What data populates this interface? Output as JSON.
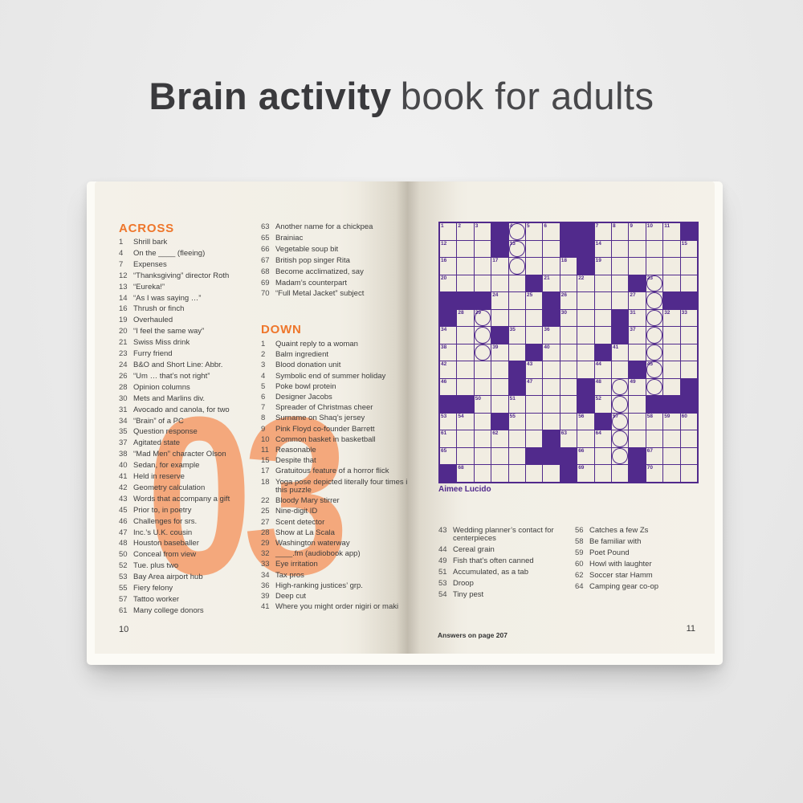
{
  "title": {
    "bold": "Brain activity",
    "regular": "book for adults"
  },
  "colors": {
    "accent_orange": "#ee762b",
    "watermark_peach": "#f4a87c",
    "grid_purple": "#512a8c",
    "page_cream": "#f2efe6",
    "background_gray": "#eaeaea",
    "title_gray": "#3a3a3d"
  },
  "left_page": {
    "across_header": "ACROSS",
    "down_header": "DOWN",
    "watermark": "03",
    "page_number": "10",
    "across_clues_col1": [
      {
        "n": "1",
        "t": "Shrill bark"
      },
      {
        "n": "4",
        "t": "On the ____ (fleeing)"
      },
      {
        "n": "7",
        "t": "Expenses"
      },
      {
        "n": "12",
        "t": "“Thanksgiving” director Roth"
      },
      {
        "n": "13",
        "t": "“Eureka!”"
      },
      {
        "n": "14",
        "t": "“As I was saying …”"
      },
      {
        "n": "16",
        "t": "Thrush or finch"
      },
      {
        "n": "19",
        "t": "Overhauled"
      },
      {
        "n": "20",
        "t": "“I feel the same way”"
      },
      {
        "n": "21",
        "t": "Swiss Miss drink"
      },
      {
        "n": "23",
        "t": "Furry friend"
      },
      {
        "n": "24",
        "t": "B&O and Short Line: Abbr."
      },
      {
        "n": "26",
        "t": "“Um … that’s not right”"
      },
      {
        "n": "28",
        "t": "Opinion columns"
      },
      {
        "n": "30",
        "t": "Mets and Marlins div."
      },
      {
        "n": "31",
        "t": "Avocado and canola, for two"
      },
      {
        "n": "34",
        "t": "“Brain” of a PC"
      },
      {
        "n": "35",
        "t": "Question response"
      },
      {
        "n": "37",
        "t": "Agitated state"
      },
      {
        "n": "38",
        "t": "“Mad Men” character Olson"
      },
      {
        "n": "40",
        "t": "Sedan, for example"
      },
      {
        "n": "41",
        "t": "Held in reserve"
      },
      {
        "n": "42",
        "t": "Geometry calculation"
      },
      {
        "n": "43",
        "t": "Words that accompany a gift"
      },
      {
        "n": "45",
        "t": "Prior to, in poetry"
      },
      {
        "n": "46",
        "t": "Challenges for srs."
      },
      {
        "n": "47",
        "t": "Inc.’s U.K. cousin"
      },
      {
        "n": "48",
        "t": "Houston baseballer"
      },
      {
        "n": "50",
        "t": "Conceal from view"
      },
      {
        "n": "52",
        "t": "Tue. plus two"
      },
      {
        "n": "53",
        "t": "Bay Area airport hub"
      },
      {
        "n": "55",
        "t": "Fiery felony"
      },
      {
        "n": "57",
        "t": "Tattoo worker"
      },
      {
        "n": "61",
        "t": "Many college donors"
      }
    ],
    "across_clues_col2": [
      {
        "n": "63",
        "t": "Another name for a chickpea"
      },
      {
        "n": "65",
        "t": "Brainiac"
      },
      {
        "n": "66",
        "t": "Vegetable soup bit"
      },
      {
        "n": "67",
        "t": "British pop singer Rita"
      },
      {
        "n": "68",
        "t": "Become acclimatized, say"
      },
      {
        "n": "69",
        "t": "Madam’s counterpart"
      },
      {
        "n": "70",
        "t": "“Full Metal Jacket” subject"
      }
    ],
    "down_clues": [
      {
        "n": "1",
        "t": "Quaint reply to a woman"
      },
      {
        "n": "2",
        "t": "Balm ingredient"
      },
      {
        "n": "3",
        "t": "Blood donation unit"
      },
      {
        "n": "4",
        "t": "Symbolic end of summer holiday"
      },
      {
        "n": "5",
        "t": "Poke bowl protein"
      },
      {
        "n": "6",
        "t": "Designer Jacobs"
      },
      {
        "n": "7",
        "t": "Spreader of Christmas cheer"
      },
      {
        "n": "8",
        "t": "Surname on Shaq’s jersey"
      },
      {
        "n": "9",
        "t": "Pink Floyd co-founder Barrett"
      },
      {
        "n": "10",
        "t": "Common basket in basketball"
      },
      {
        "n": "11",
        "t": "Reasonable"
      },
      {
        "n": "15",
        "t": "Despite that"
      },
      {
        "n": "17",
        "t": "Gratuitous feature of a horror flick"
      },
      {
        "n": "18",
        "t": "Yoga pose depicted literally four times in this puzzle"
      },
      {
        "n": "22",
        "t": "Bloody Mary stirrer"
      },
      {
        "n": "25",
        "t": "Nine-digit ID"
      },
      {
        "n": "27",
        "t": "Scent detector"
      },
      {
        "n": "28",
        "t": "Show at La Scala"
      },
      {
        "n": "29",
        "t": "Washington waterway"
      },
      {
        "n": "32",
        "t": "____.fm (audiobook app)"
      },
      {
        "n": "33",
        "t": "Eye irritation"
      },
      {
        "n": "34",
        "t": "Tax pros"
      },
      {
        "n": "36",
        "t": "High-ranking justices’ grp."
      },
      {
        "n": "39",
        "t": "Deep cut"
      },
      {
        "n": "41",
        "t": "Where you might order nigiri or maki"
      }
    ]
  },
  "right_page": {
    "byline": "Aimee Lucido",
    "footer_note": "Answers on page 207",
    "page_number": "11",
    "bottom_clues_col1": [
      {
        "n": "43",
        "t": "Wedding planner’s contact for centerpieces"
      },
      {
        "n": "44",
        "t": "Cereal grain"
      },
      {
        "n": "49",
        "t": "Fish that’s often canned"
      },
      {
        "n": "51",
        "t": "Accumulated, as a tab"
      },
      {
        "n": "53",
        "t": "Droop"
      },
      {
        "n": "54",
        "t": "Tiny pest"
      }
    ],
    "bottom_clues_col2": [
      {
        "n": "56",
        "t": "Catches a few Zs"
      },
      {
        "n": "58",
        "t": "Be familiar with"
      },
      {
        "n": "59",
        "t": "Poet Pound"
      },
      {
        "n": "60",
        "t": "Howl with laughter"
      },
      {
        "n": "62",
        "t": "Soccer star Hamm"
      },
      {
        "n": "64",
        "t": "Camping gear co-op"
      }
    ],
    "grid": {
      "size": 15,
      "rows": [
        "...#...##.....#",
        "...#...##......",
        "........#......",
        ".....#.....#...",
        "###...#......##",
        "#.....#...#....",
        "...#......#....",
        ".....#...#.....",
        "....#......#...",
        "....#...#.....#",
        "##......#...###",
        "...#.....#.....",
        "......#........",
        ".....###...#...",
        "#......#...#..."
      ],
      "numbers": [
        [
          0,
          0,
          1
        ],
        [
          0,
          1,
          2
        ],
        [
          0,
          2,
          3
        ],
        [
          0,
          4,
          4
        ],
        [
          0,
          5,
          5
        ],
        [
          0,
          6,
          6
        ],
        [
          0,
          9,
          7
        ],
        [
          0,
          10,
          8
        ],
        [
          0,
          11,
          9
        ],
        [
          0,
          12,
          10
        ],
        [
          0,
          13,
          11
        ],
        [
          1,
          0,
          12
        ],
        [
          1,
          4,
          13
        ],
        [
          1,
          9,
          14
        ],
        [
          1,
          14,
          15
        ],
        [
          2,
          0,
          16
        ],
        [
          2,
          3,
          17
        ],
        [
          2,
          7,
          18
        ],
        [
          2,
          9,
          19
        ],
        [
          3,
          0,
          20
        ],
        [
          3,
          6,
          21
        ],
        [
          3,
          8,
          22
        ],
        [
          3,
          12,
          23
        ],
        [
          4,
          3,
          24
        ],
        [
          4,
          5,
          25
        ],
        [
          4,
          7,
          26
        ],
        [
          4,
          11,
          27
        ],
        [
          5,
          1,
          28
        ],
        [
          5,
          2,
          29
        ],
        [
          5,
          7,
          30
        ],
        [
          5,
          11,
          31
        ],
        [
          5,
          13,
          32
        ],
        [
          5,
          14,
          33
        ],
        [
          6,
          0,
          34
        ],
        [
          6,
          4,
          35
        ],
        [
          6,
          6,
          36
        ],
        [
          6,
          11,
          37
        ],
        [
          7,
          0,
          38
        ],
        [
          7,
          3,
          39
        ],
        [
          7,
          6,
          40
        ],
        [
          7,
          10,
          41
        ],
        [
          8,
          0,
          42
        ],
        [
          8,
          5,
          43
        ],
        [
          8,
          9,
          44
        ],
        [
          8,
          12,
          45
        ],
        [
          9,
          0,
          46
        ],
        [
          9,
          5,
          47
        ],
        [
          9,
          9,
          48
        ],
        [
          9,
          11,
          49
        ],
        [
          10,
          2,
          50
        ],
        [
          10,
          4,
          51
        ],
        [
          10,
          9,
          52
        ],
        [
          11,
          0,
          53
        ],
        [
          11,
          1,
          54
        ],
        [
          11,
          4,
          55
        ],
        [
          11,
          8,
          56
        ],
        [
          11,
          10,
          57
        ],
        [
          11,
          12,
          58
        ],
        [
          11,
          13,
          59
        ],
        [
          11,
          14,
          60
        ],
        [
          12,
          0,
          61
        ],
        [
          12,
          3,
          62
        ],
        [
          12,
          7,
          63
        ],
        [
          12,
          9,
          64
        ],
        [
          13,
          0,
          65
        ],
        [
          13,
          8,
          66
        ],
        [
          13,
          12,
          67
        ],
        [
          14,
          1,
          68
        ],
        [
          14,
          8,
          69
        ],
        [
          14,
          12,
          70
        ]
      ],
      "circles": [
        [
          0,
          4
        ],
        [
          1,
          4
        ],
        [
          2,
          4
        ],
        [
          5,
          2
        ],
        [
          6,
          2
        ],
        [
          7,
          2
        ],
        [
          3,
          12
        ],
        [
          4,
          12
        ],
        [
          5,
          12
        ],
        [
          6,
          12
        ],
        [
          7,
          12
        ],
        [
          8,
          12
        ],
        [
          9,
          12
        ],
        [
          9,
          10
        ],
        [
          10,
          10
        ],
        [
          11,
          10
        ],
        [
          12,
          10
        ],
        [
          13,
          10
        ]
      ]
    }
  }
}
